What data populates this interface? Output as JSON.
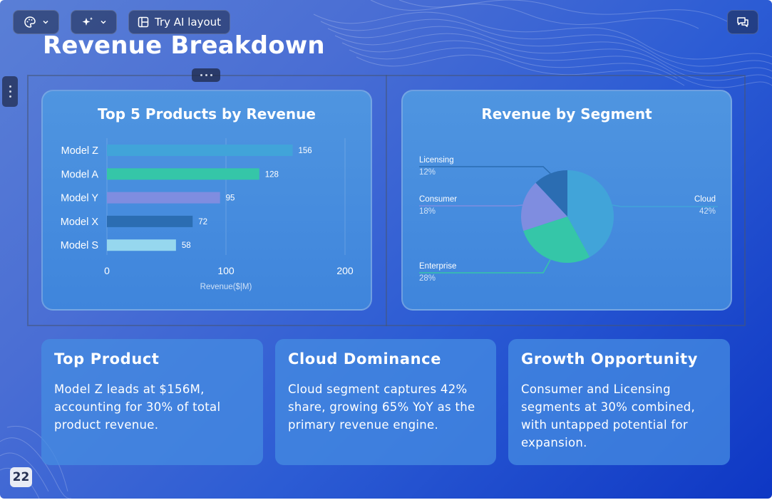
{
  "toolbar": {
    "theme_icon": "palette-icon",
    "ai_icon": "sparkles-icon",
    "try_ai_label": "Try AI layout",
    "layout_icon": "layout-icon",
    "chat_icon": "chat-icon"
  },
  "slide": {
    "title": "Revenue Breakdown",
    "page_number": "22"
  },
  "colors": {
    "bg_start": "#5a7fd6",
    "bg_end": "#0e37c4",
    "card": "#4a90e0",
    "white": "#ffffff"
  },
  "chart_data": [
    {
      "type": "bar",
      "orientation": "horizontal",
      "title": "Top 5 Products by Revenue",
      "xlabel": "Revenue($|M)",
      "ylabel": "",
      "categories": [
        "Model Z",
        "Model A",
        "Model Y",
        "Model X",
        "Model S"
      ],
      "values": [
        156,
        128,
        95,
        72,
        58
      ],
      "colors": [
        "#41a4d9",
        "#35c6a8",
        "#7f8de0",
        "#2b6db2",
        "#96d7ee"
      ],
      "xlim": [
        0,
        200
      ],
      "xticks": [
        "0",
        "100",
        "200"
      ],
      "grid": true
    },
    {
      "type": "pie",
      "title": "Revenue by Segment",
      "slices": [
        {
          "label": "Cloud",
          "value": 42,
          "pct": "42%",
          "color": "#41a4d9"
        },
        {
          "label": "Enterprise",
          "value": 28,
          "pct": "28%",
          "color": "#35c6a8"
        },
        {
          "label": "Consumer",
          "value": 18,
          "pct": "18%",
          "color": "#7f8de0"
        },
        {
          "label": "Licensing",
          "value": 12,
          "pct": "12%",
          "color": "#2b6db2"
        }
      ]
    }
  ],
  "insights": [
    {
      "title": "Top Product",
      "text": "Model Z leads at $156M, accounting for 30% of total product revenue."
    },
    {
      "title": "Cloud Dominance",
      "text": "Cloud segment captures 42% share, growing 65% YoY as the primary revenue engine."
    },
    {
      "title": "Growth Opportunity",
      "text": "Consumer and Licensing segments at 30% combined, with untapped potential for expansion."
    }
  ]
}
